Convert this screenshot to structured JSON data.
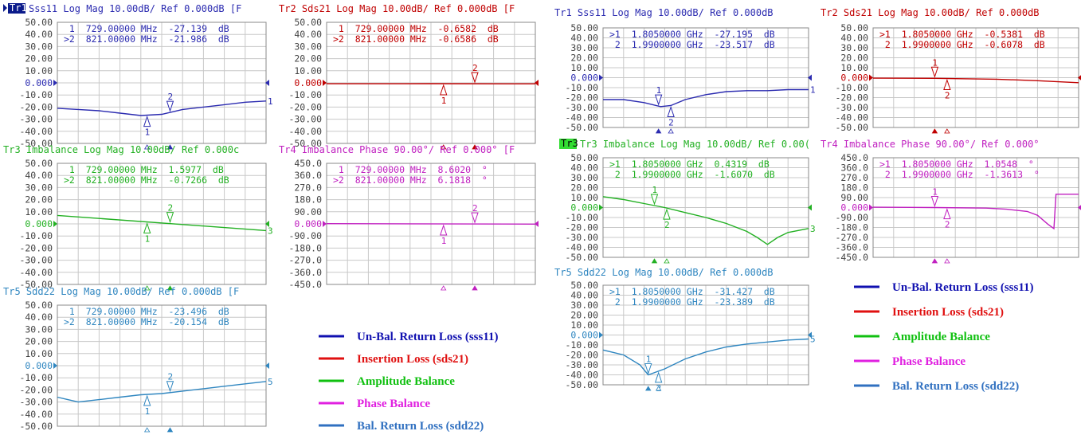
{
  "colors": {
    "tr1": "#2b2bb0",
    "tr2": "#c00000",
    "tr3": "#22b022",
    "tr4": "#c020c0",
    "tr5": "#2f86c0",
    "grid": "#c8c8c8",
    "black": "#000000"
  },
  "chart_data": [
    {
      "type": "line",
      "title": "Sss11 Log Mag 10.00dB/ Ref 0.000dB [F",
      "trace_label": "Tr1",
      "badge": true,
      "color_key": "tr1",
      "ylim": [
        -50,
        50
      ],
      "yticks": [
        "50.00",
        "40.00",
        "30.00",
        "20.00",
        "10.00",
        "0.000",
        "-10.00",
        "-20.00",
        "-30.00",
        "-40.00",
        "-50.00"
      ],
      "x": [
        0,
        0.1,
        0.2,
        0.3,
        0.4,
        0.5,
        0.6,
        0.7,
        0.8,
        0.9,
        1
      ],
      "values": [
        -21,
        -22,
        -23,
        -25,
        -27,
        -26,
        -22,
        -20,
        -18,
        -16,
        -15
      ],
      "markers": [
        {
          "n": "1",
          "freq": "729.00000 MHz",
          "val": "-27.139",
          "unit": "dB",
          "active": false,
          "xf": 0.43
        },
        {
          "n": "2",
          "freq": "821.00000 MHz",
          "val": "-21.986",
          "unit": "dB",
          "active": true,
          "xf": 0.54
        }
      ],
      "trace_num": "1",
      "ref_mark": true
    },
    {
      "type": "line",
      "title": "Tr2 Sds21 Log Mag 10.00dB/ Ref 0.000dB [F",
      "trace_label": "",
      "badge": false,
      "color_key": "tr2",
      "ylim": [
        -50,
        50
      ],
      "yticks": [
        "50.00",
        "40.00",
        "30.00",
        "20.00",
        "10.00",
        "0.000",
        "-10.00",
        "-20.00",
        "-30.00",
        "-40.00",
        "-50.00"
      ],
      "x": [
        0,
        0.5,
        1
      ],
      "values": [
        -0.7,
        -0.66,
        -0.8
      ],
      "markers": [
        {
          "n": "1",
          "freq": "729.00000 MHz",
          "val": "-0.6582",
          "unit": "dB",
          "active": false,
          "xf": 0.56
        },
        {
          "n": "2",
          "freq": "821.00000 MHz",
          "val": "-0.6586",
          "unit": "dB",
          "active": true,
          "xf": 0.71
        }
      ],
      "trace_num": "",
      "ref_mark": true
    },
    {
      "type": "line",
      "title": "Tr3 Imbalance Log Mag 10.00dB/ Ref 0.000c",
      "trace_label": "",
      "badge": false,
      "color_key": "tr3",
      "ylim": [
        -50,
        50
      ],
      "yticks": [
        "50.00",
        "40.00",
        "30.00",
        "20.00",
        "10.00",
        "0.000",
        "-10.00",
        "-20.00",
        "-30.00",
        "-40.00",
        "-50.00"
      ],
      "x": [
        0,
        1
      ],
      "values": [
        7,
        -5.5
      ],
      "markers": [
        {
          "n": "1",
          "freq": "729.00000 MHz",
          "val": "1.5977",
          "unit": "dB",
          "active": false,
          "xf": 0.43
        },
        {
          "n": "2",
          "freq": "821.00000 MHz",
          "val": "-0.7266",
          "unit": "dB",
          "active": true,
          "xf": 0.54
        }
      ],
      "trace_num": "3",
      "ref_mark": true
    },
    {
      "type": "line",
      "title": "Tr4 Imbalance Phase 90.00°/ Ref 0.000° [F",
      "trace_label": "",
      "badge": false,
      "color_key": "tr4",
      "ylim": [
        -450,
        450
      ],
      "yticks": [
        "450.0",
        "360.0",
        "270.0",
        "180.0",
        "90.00",
        "0.000",
        "-90.00",
        "-180.0",
        "-270.0",
        "-360.0",
        "-450.0"
      ],
      "x": [
        0,
        1
      ],
      "values": [
        2,
        -2
      ],
      "markers": [
        {
          "n": "1",
          "freq": "729.00000 MHz",
          "val": "8.6020",
          "unit": "°",
          "active": false,
          "xf": 0.56
        },
        {
          "n": "2",
          "freq": "821.00000 MHz",
          "val": "6.1818",
          "unit": "°",
          "active": true,
          "xf": 0.71
        }
      ],
      "trace_num": "",
      "ref_mark": true
    },
    {
      "type": "line",
      "title": "Tr5 Sdd22 Log Mag 10.00dB/ Ref 0.000dB [F",
      "trace_label": "",
      "badge": false,
      "color_key": "tr5",
      "ylim": [
        -50,
        50
      ],
      "yticks": [
        "50.00",
        "40.00",
        "30.00",
        "20.00",
        "10.00",
        "0.000",
        "-10.00",
        "-20.00",
        "-30.00",
        "-40.00",
        "-50.00"
      ],
      "x": [
        0,
        0.05,
        0.1,
        0.2,
        0.3,
        0.4,
        0.5,
        0.6,
        0.7,
        0.8,
        0.9,
        1
      ],
      "values": [
        -26,
        -28,
        -30,
        -28,
        -26,
        -24,
        -23,
        -21,
        -19,
        -17,
        -15,
        -13
      ],
      "markers": [
        {
          "n": "1",
          "freq": "729.00000 MHz",
          "val": "-23.496",
          "unit": "dB",
          "active": false,
          "xf": 0.43
        },
        {
          "n": "2",
          "freq": "821.00000 MHz",
          "val": "-20.154",
          "unit": "dB",
          "active": true,
          "xf": 0.54
        }
      ],
      "trace_num": "5",
      "ref_mark": true
    },
    {
      "type": "line",
      "title": "Tr1 Sss11 Log Mag 10.00dB/ Ref 0.000dB",
      "trace_label": "",
      "badge": false,
      "color_key": "tr1",
      "ylim": [
        -50,
        50
      ],
      "yticks": [
        "50.00",
        "40.00",
        "30.00",
        "20.00",
        "10.00",
        "0.000",
        "-10.00",
        "-20.00",
        "-30.00",
        "-40.00",
        "-50.00"
      ],
      "x": [
        0,
        0.1,
        0.2,
        0.28,
        0.33,
        0.4,
        0.5,
        0.6,
        0.7,
        0.8,
        0.9,
        1
      ],
      "values": [
        -22,
        -22,
        -25,
        -29,
        -28,
        -22,
        -17,
        -14,
        -13,
        -13,
        -12,
        -12
      ],
      "markers": [
        {
          "n": "1",
          "freq": "1.8050000 GHz",
          "val": "-27.195",
          "unit": "dB",
          "active": true,
          "xf": 0.27
        },
        {
          "n": "2",
          "freq": "1.9900000 GHz",
          "val": "-23.517",
          "unit": "dB",
          "active": false,
          "xf": 0.33
        }
      ],
      "trace_num": "1",
      "ref_mark": true
    },
    {
      "type": "line",
      "title": "Tr2 Sds21 Log Mag 10.00dB/ Ref 0.000dB",
      "trace_label": "",
      "badge": false,
      "color_key": "tr2",
      "ylim": [
        -50,
        50
      ],
      "yticks": [
        "50.00",
        "40.00",
        "30.00",
        "20.00",
        "10.00",
        "0.000",
        "-10.00",
        "-20.00",
        "-30.00",
        "-40.00",
        "-50.00"
      ],
      "x": [
        0,
        0.3,
        0.6,
        0.8,
        1
      ],
      "values": [
        -0.5,
        -0.6,
        -1.5,
        -3,
        -5
      ],
      "markers": [
        {
          "n": "1",
          "freq": "1.8050000 GHz",
          "val": "-0.5381",
          "unit": "dB",
          "active": true,
          "xf": 0.3
        },
        {
          "n": "2",
          "freq": "1.9900000 GHz",
          "val": "-0.6078",
          "unit": "dB",
          "active": false,
          "xf": 0.36
        }
      ],
      "trace_num": "",
      "ref_mark": true
    },
    {
      "type": "line",
      "title": "Tr3 Imbalance Log Mag 10.00dB/ Ref 0.00(",
      "trace_label": "Tr3",
      "badge": true,
      "color_key": "tr3",
      "ylim": [
        -50,
        50
      ],
      "yticks": [
        "50.00",
        "40.00",
        "30.00",
        "20.00",
        "10.00",
        "0.000",
        "-10.00",
        "-20.00",
        "-30.00",
        "-40.00",
        "-50.00"
      ],
      "x": [
        0,
        0.1,
        0.2,
        0.3,
        0.4,
        0.5,
        0.6,
        0.7,
        0.75,
        0.8,
        0.85,
        0.9,
        1
      ],
      "values": [
        11,
        8,
        4,
        0,
        -5,
        -10,
        -16,
        -24,
        -30,
        -37,
        -30,
        -25,
        -21
      ],
      "markers": [
        {
          "n": "1",
          "freq": "1.8050000 GHz",
          "val": "0.4319",
          "unit": "dB",
          "active": true,
          "xf": 0.25
        },
        {
          "n": "2",
          "freq": "1.9900000 GHz",
          "val": "-1.6070",
          "unit": "dB",
          "active": false,
          "xf": 0.31
        }
      ],
      "trace_num": "3",
      "ref_mark": true
    },
    {
      "type": "line",
      "title": "Tr4 Imbalance Phase 90.00°/ Ref 0.000°",
      "trace_label": "",
      "badge": false,
      "color_key": "tr4",
      "ylim": [
        -450,
        450
      ],
      "yticks": [
        "450.0",
        "360.0",
        "270.0",
        "180.0",
        "90.00",
        "0.000",
        "-90.00",
        "-180.0",
        "-270.0",
        "-360.0",
        "-450.0"
      ],
      "x": [
        0,
        0.3,
        0.55,
        0.65,
        0.75,
        0.8,
        0.85,
        0.88,
        0.89,
        0.92,
        1
      ],
      "values": [
        3,
        0,
        -5,
        -15,
        -35,
        -70,
        -150,
        -190,
        120,
        120,
        120
      ],
      "markers": [
        {
          "n": "1",
          "freq": "1.8050000 GHz",
          "val": "1.0548",
          "unit": "°",
          "active": true,
          "xf": 0.3
        },
        {
          "n": "2",
          "freq": "1.9900000 GHz",
          "val": "-1.3613",
          "unit": "°",
          "active": false,
          "xf": 0.36
        }
      ],
      "trace_num": "",
      "ref_mark": true
    },
    {
      "type": "line",
      "title": "Tr5 Sdd22 Log Mag 10.00dB/ Ref 0.000dB",
      "trace_label": "",
      "badge": false,
      "color_key": "tr5",
      "ylim": [
        -50,
        50
      ],
      "yticks": [
        "50.00",
        "40.00",
        "30.00",
        "20.00",
        "10.00",
        "0.000",
        "-10.00",
        "-20.00",
        "-30.00",
        "-40.00",
        "-50.00"
      ],
      "x": [
        0,
        0.1,
        0.18,
        0.22,
        0.3,
        0.4,
        0.5,
        0.6,
        0.7,
        0.8,
        0.9,
        1
      ],
      "values": [
        -15,
        -20,
        -30,
        -40,
        -34,
        -24,
        -17,
        -12,
        -9,
        -7,
        -5,
        -4
      ],
      "markers": [
        {
          "n": "1",
          "freq": "1.8050000 GHz",
          "val": "-31.427",
          "unit": "dB",
          "active": true,
          "xf": 0.22
        },
        {
          "n": "2",
          "freq": "1.9900000 GHz",
          "val": "-23.389",
          "unit": "dB",
          "active": false,
          "xf": 0.27
        }
      ],
      "trace_num": "5",
      "ref_mark": true
    }
  ],
  "legends": [
    {
      "items": [
        {
          "label": "Un-Bal.  Return Loss (sss11)",
          "color": "#1010b0"
        },
        {
          "label": "Insertion Loss (sds21)",
          "color": "#e01010"
        },
        {
          "label": "Amplitude Balance",
          "color": "#10c010"
        },
        {
          "label": "Phase Balance",
          "color": "#e020e0"
        },
        {
          "label": "Bal.  Return Loss (sdd22)",
          "color": "#3070c0"
        }
      ]
    },
    {
      "items": [
        {
          "label": "Un-Bal.  Return Loss (sss11)",
          "color": "#1010b0"
        },
        {
          "label": "Insertion Loss (sds21)",
          "color": "#e01010"
        },
        {
          "label": "Amplitude Balance",
          "color": "#10c010"
        },
        {
          "label": "Phase Balance",
          "color": "#e020e0"
        },
        {
          "label": "Bal.  Return Loss (sdd22)",
          "color": "#3070c0"
        }
      ]
    }
  ]
}
